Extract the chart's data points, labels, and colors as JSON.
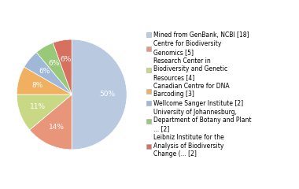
{
  "legend_labels": [
    "Mined from GenBank, NCBI [18]",
    "Centre for Biodiversity\nGenomics [5]",
    "Research Center in\nBiodiversity and Genetic\nResources [4]",
    "Canadian Centre for DNA\nBarcoding [3]",
    "Wellcome Sanger Institute [2]",
    "University of Johannesburg,\nDepartment of Botany and Plant\n... [2]",
    "Leibniz Institute for the\nAnalysis of Biodiversity\nChange (... [2]"
  ],
  "values": [
    18,
    5,
    4,
    3,
    2,
    2,
    2
  ],
  "colors": [
    "#b8c9e0",
    "#e8957a",
    "#c8d884",
    "#f0b060",
    "#a0b8d8",
    "#98c878",
    "#d87060"
  ],
  "background_color": "#ffffff",
  "text_color": "#ffffff",
  "fontsize": 6.5
}
